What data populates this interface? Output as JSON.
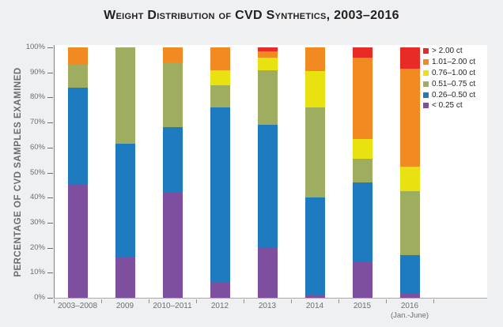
{
  "chart_data": {
    "type": "bar",
    "subtype": "stacked-percentage-columns",
    "title": "Weight Distribution of CVD Synthetics, 2003–2016",
    "ylabel": "PERCENTAGE OF CVD SAMPLES EXAMINED",
    "ylim": [
      0,
      100
    ],
    "ytick_step": 10,
    "ytick_suffix": "%",
    "grid": false,
    "legend_position": "top-right",
    "categories": [
      "2003–2008",
      "2009",
      "2010–2011",
      "2012",
      "2013",
      "2014",
      "2015",
      "2016"
    ],
    "category_sublabels": [
      "",
      "",
      "",
      "",
      "",
      "",
      "",
      "(Jan.-June)"
    ],
    "series": [
      {
        "name": "< 0.25 ct",
        "color": "#7d4f9e",
        "values": [
          45,
          16,
          42,
          6,
          20,
          1,
          14.5,
          2
        ]
      },
      {
        "name": "0.26–0.50 ct",
        "color": "#1e7bc0",
        "values": [
          39,
          45.5,
          26,
          70,
          49,
          39,
          31.5,
          15
        ]
      },
      {
        "name": "0.51–0.75 ct",
        "color": "#9ead60",
        "values": [
          9,
          38.5,
          26,
          9,
          22,
          36,
          9.5,
          25.5
        ]
      },
      {
        "name": "0.76–1.00 ct",
        "color": "#e8e211",
        "values": [
          0,
          0,
          0,
          6,
          5,
          14.5,
          8,
          10
        ]
      },
      {
        "name": "1.01–2.00 ct",
        "color": "#f18a21",
        "values": [
          7,
          0,
          6,
          9,
          2.5,
          9.5,
          32.5,
          39
        ]
      },
      {
        "name": "> 2.00 ct",
        "color": "#e92b26",
        "values": [
          0,
          0,
          0,
          0,
          1.5,
          0,
          4,
          8.5
        ]
      }
    ],
    "legend_order_note": "legend displays series largest-to-smallest carat, i.e. reversed stacking order",
    "colors": {
      "background": "#eef0f1",
      "plot_background": "#ffffff",
      "axis_line": "#7e8083",
      "tick_text": "#6d6e71",
      "title_text": "#231f20"
    }
  }
}
